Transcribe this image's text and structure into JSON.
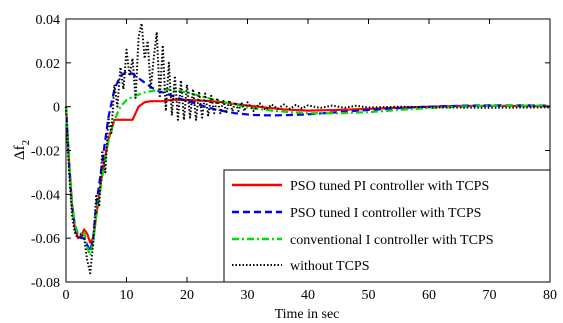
{
  "chart_data": {
    "type": "line",
    "title": "",
    "xlabel": "Time in sec",
    "ylabel": "Δf",
    "ylabel_subscript": "2",
    "xlim": [
      0,
      80
    ],
    "ylim": [
      -0.08,
      0.04
    ],
    "xticks": [
      0,
      10,
      20,
      30,
      40,
      50,
      60,
      70,
      80
    ],
    "xtick_labels": [
      "0",
      "10",
      "20",
      "30",
      "40",
      "50",
      "60",
      "70",
      "80"
    ],
    "yticks": [
      -0.08,
      -0.06,
      -0.04,
      -0.02,
      0,
      0.02,
      0.04
    ],
    "ytick_labels": [
      "-0.08",
      "-0.06",
      "-0.04",
      "-0.02",
      "0",
      "0.02",
      "0.04"
    ],
    "grid": false,
    "legend_position": "lower-right",
    "series": [
      {
        "name": "PSO tuned PI controller with TCPS",
        "color": "#ff0000",
        "dash": "solid",
        "x": [
          0,
          0.5,
          1,
          1.5,
          2,
          2.5,
          3,
          3.5,
          4,
          4.5,
          5,
          6,
          7,
          8,
          9,
          10,
          11,
          12,
          13,
          14,
          15,
          16,
          17,
          18,
          20,
          22,
          24,
          26,
          28,
          30,
          33,
          36,
          40,
          45,
          50,
          55,
          60,
          65,
          70,
          75,
          80
        ],
        "y": [
          0,
          -0.025,
          -0.045,
          -0.056,
          -0.06,
          -0.059,
          -0.056,
          -0.058,
          -0.062,
          -0.06,
          -0.05,
          -0.03,
          -0.015,
          -0.006,
          -0.006,
          -0.006,
          -0.006,
          0.0,
          0.002,
          0.0025,
          0.0025,
          0.0025,
          0.003,
          0.0032,
          0.003,
          0.0028,
          0.0025,
          0.002,
          0.0012,
          0.0005,
          -0.0004,
          -0.0012,
          -0.0018,
          -0.0015,
          -0.001,
          -0.0005,
          0.0,
          0.0003,
          0.0004,
          0.0003,
          0.0002
        ]
      },
      {
        "name": "PSO tuned I controller with TCPS",
        "color": "#0000ff",
        "dash": "dashed",
        "x": [
          0,
          0.5,
          1,
          1.5,
          2,
          2.5,
          3,
          3.5,
          4,
          4.5,
          5,
          6,
          7,
          8,
          9,
          10,
          11,
          12,
          13,
          14,
          15,
          17,
          19,
          21,
          23,
          25,
          28,
          31,
          34,
          37,
          40,
          45,
          50,
          55,
          60,
          65,
          70,
          75,
          80
        ],
        "y": [
          0,
          -0.025,
          -0.045,
          -0.055,
          -0.059,
          -0.06,
          -0.06,
          -0.063,
          -0.066,
          -0.06,
          -0.045,
          -0.025,
          -0.005,
          0.008,
          0.014,
          0.016,
          0.015,
          0.013,
          0.011,
          0.009,
          0.0075,
          0.0055,
          0.0035,
          0.0018,
          0.0,
          -0.0015,
          -0.003,
          -0.0038,
          -0.004,
          -0.0038,
          -0.0035,
          -0.0025,
          -0.0015,
          -0.0007,
          0.0,
          0.0004,
          0.0006,
          0.0006,
          0.0005
        ]
      },
      {
        "name": "conventional I controller with TCPS",
        "color": "#00dd00",
        "dash": "dashdot",
        "x": [
          0,
          0.5,
          1,
          1.5,
          2,
          2.5,
          3,
          3.5,
          4,
          4.5,
          5,
          6,
          7,
          8,
          9,
          10,
          11,
          12,
          13,
          14,
          15,
          16,
          17,
          18,
          20,
          22,
          25,
          28,
          31,
          34,
          37,
          40,
          45,
          50,
          55,
          60,
          65,
          70,
          75,
          80
        ],
        "y": [
          0,
          -0.024,
          -0.044,
          -0.054,
          -0.058,
          -0.058,
          -0.057,
          -0.064,
          -0.068,
          -0.062,
          -0.05,
          -0.032,
          -0.016,
          -0.006,
          0.0,
          0.003,
          0.0045,
          0.0055,
          0.0065,
          0.007,
          0.0075,
          0.0078,
          0.0078,
          0.0075,
          0.0065,
          0.005,
          0.0028,
          0.0008,
          -0.0008,
          -0.0018,
          -0.0025,
          -0.003,
          -0.003,
          -0.0025,
          -0.0015,
          -0.0006,
          0.0,
          0.0004,
          0.0005,
          0.0004
        ]
      },
      {
        "name": "without TCPS",
        "color": "#000000",
        "dash": "dotted",
        "x": [
          0,
          0.5,
          1,
          1.5,
          2,
          2.5,
          3,
          3.5,
          4,
          4.5,
          5,
          5.5,
          6,
          6.5,
          7,
          7.5,
          8,
          8.5,
          9,
          9.5,
          10,
          10.5,
          11,
          11.5,
          12,
          12.5,
          13,
          13.5,
          14,
          14.5,
          15,
          15.5,
          16,
          16.5,
          17,
          17.5,
          18,
          18.5,
          19,
          19.5,
          20,
          20.5,
          21,
          21.5,
          22,
          22.5,
          23,
          23.5,
          24,
          24.5,
          25,
          25.5,
          26,
          26.5,
          27,
          27.5,
          28,
          28.5,
          29,
          29.5,
          30,
          31,
          32,
          33,
          34,
          35,
          36,
          37,
          38,
          39,
          40,
          42,
          44,
          46,
          48,
          50,
          55,
          60,
          65,
          70,
          75,
          80
        ],
        "y": [
          0,
          -0.03,
          -0.05,
          -0.058,
          -0.06,
          -0.058,
          -0.06,
          -0.07,
          -0.076,
          -0.062,
          -0.04,
          -0.045,
          -0.02,
          -0.03,
          -0.005,
          -0.012,
          0.01,
          0.0,
          0.018,
          0.008,
          0.026,
          0.014,
          0.022,
          0.004,
          0.032,
          0.038,
          0.022,
          0.03,
          0.008,
          0.022,
          0.034,
          0.004,
          0.028,
          -0.002,
          0.02,
          -0.004,
          0.014,
          -0.006,
          0.012,
          -0.006,
          0.01,
          -0.005,
          0.008,
          -0.006,
          0.007,
          -0.005,
          0.006,
          -0.004,
          0.005,
          -0.003,
          0.004,
          -0.003,
          0.003,
          -0.003,
          0.003,
          -0.002,
          0.002,
          -0.002,
          0.002,
          -0.002,
          0.002,
          -0.002,
          0.0015,
          -0.0015,
          0.001,
          -0.001,
          0.001,
          -0.001,
          0.0008,
          -0.0008,
          0.0006,
          -0.0006,
          0.0005,
          -0.0005,
          0.0004,
          -0.0004,
          0.0,
          -0.0003,
          -0.0004,
          -0.0005,
          -0.0004,
          -0.0003
        ]
      }
    ]
  }
}
